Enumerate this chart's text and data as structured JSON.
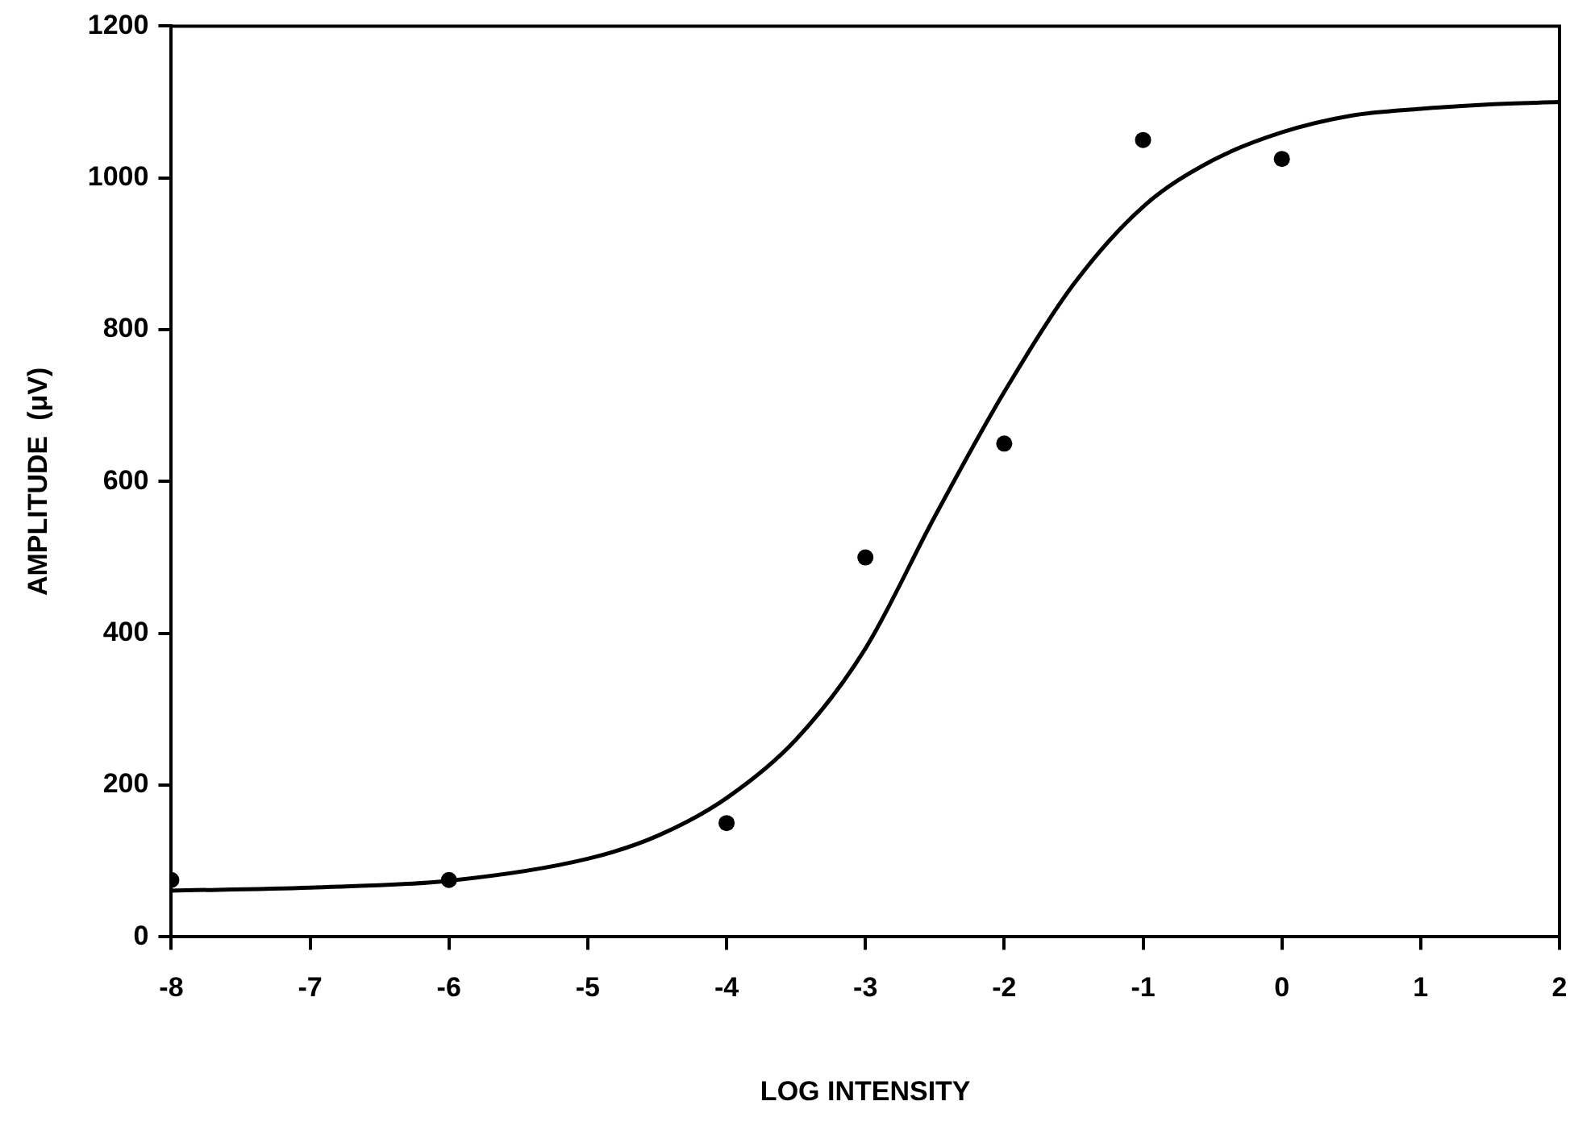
{
  "chart_data": {
    "type": "scatter",
    "xlabel": "LOG INTENSITY",
    "ylabel": "AMPLITUDE  (μV)",
    "xlim": [
      -8,
      2
    ],
    "xticks": [
      -8,
      -7,
      -6,
      -5,
      -4,
      -3,
      -2,
      -1,
      0,
      1,
      2
    ],
    "ylim": [
      0,
      1200
    ],
    "yticks": [
      0,
      200,
      400,
      600,
      800,
      1000,
      1200
    ],
    "grid": false,
    "legend": false,
    "series": [
      {
        "type": "scatter",
        "color": "#000000",
        "marker": "circle",
        "x": [
          -8,
          -6,
          -4,
          -3,
          -2,
          -1,
          0
        ],
        "values": [
          75,
          75,
          150,
          500,
          650,
          1050,
          1025
        ]
      },
      {
        "type": "line",
        "color": "#000000",
        "marker": "none",
        "line_style": "solid",
        "x": [
          -8,
          -7,
          -6,
          -5,
          -4.5,
          -4,
          -3.5,
          -3,
          -2.5,
          -2,
          -1.5,
          -1,
          -0.5,
          0,
          0.5,
          1,
          1.5,
          2
        ],
        "values": [
          61,
          65,
          74,
          103,
          133,
          183,
          260,
          380,
          554,
          718,
          860,
          962,
          1023,
          1060,
          1082,
          1091,
          1097,
          1100
        ]
      }
    ]
  }
}
